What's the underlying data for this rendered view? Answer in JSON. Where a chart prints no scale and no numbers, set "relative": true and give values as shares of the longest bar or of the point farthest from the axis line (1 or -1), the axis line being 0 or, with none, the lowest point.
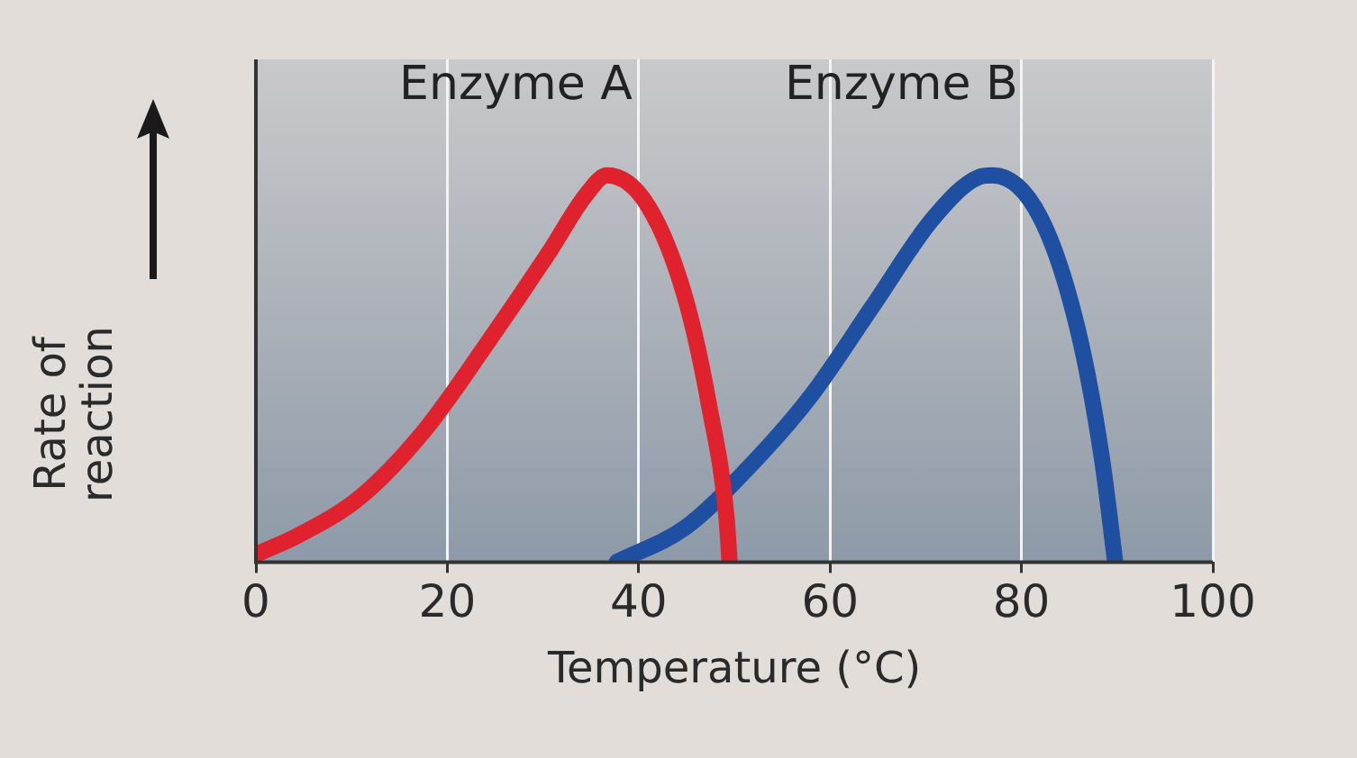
{
  "chart_data": {
    "type": "line",
    "xlabel": "Temperature (°C)",
    "ylabel": "Rate of reaction",
    "relative": true,
    "xlim": [
      0,
      100
    ],
    "xticks": [
      0,
      20,
      40,
      60,
      80,
      100
    ],
    "grid": "x",
    "legend": false,
    "marker": "none",
    "line_style": "solid",
    "series": [
      {
        "name": "Enzyme A",
        "color": "#e0222e",
        "x": [
          0,
          4.5,
          11,
          17.6,
          24,
          30.6,
          34.5,
          36.7,
          41,
          44.9,
          47.4,
          49.2,
          49.5
        ],
        "values": [
          0.02,
          0.07,
          0.17,
          0.34,
          0.56,
          0.8,
          0.95,
          1.0,
          0.92,
          0.68,
          0.4,
          0.11,
          0
        ]
      },
      {
        "name": "Enzyme B",
        "color": "#1f4fa0",
        "x": [
          37.7,
          44.9,
          51.3,
          58,
          64.4,
          70.8,
          75.5,
          77,
          82,
          85.9,
          88.4,
          89.8
        ],
        "values": [
          0,
          0.09,
          0.24,
          0.43,
          0.66,
          0.89,
          0.995,
          1.0,
          0.89,
          0.6,
          0.27,
          0
        ]
      }
    ]
  }
}
